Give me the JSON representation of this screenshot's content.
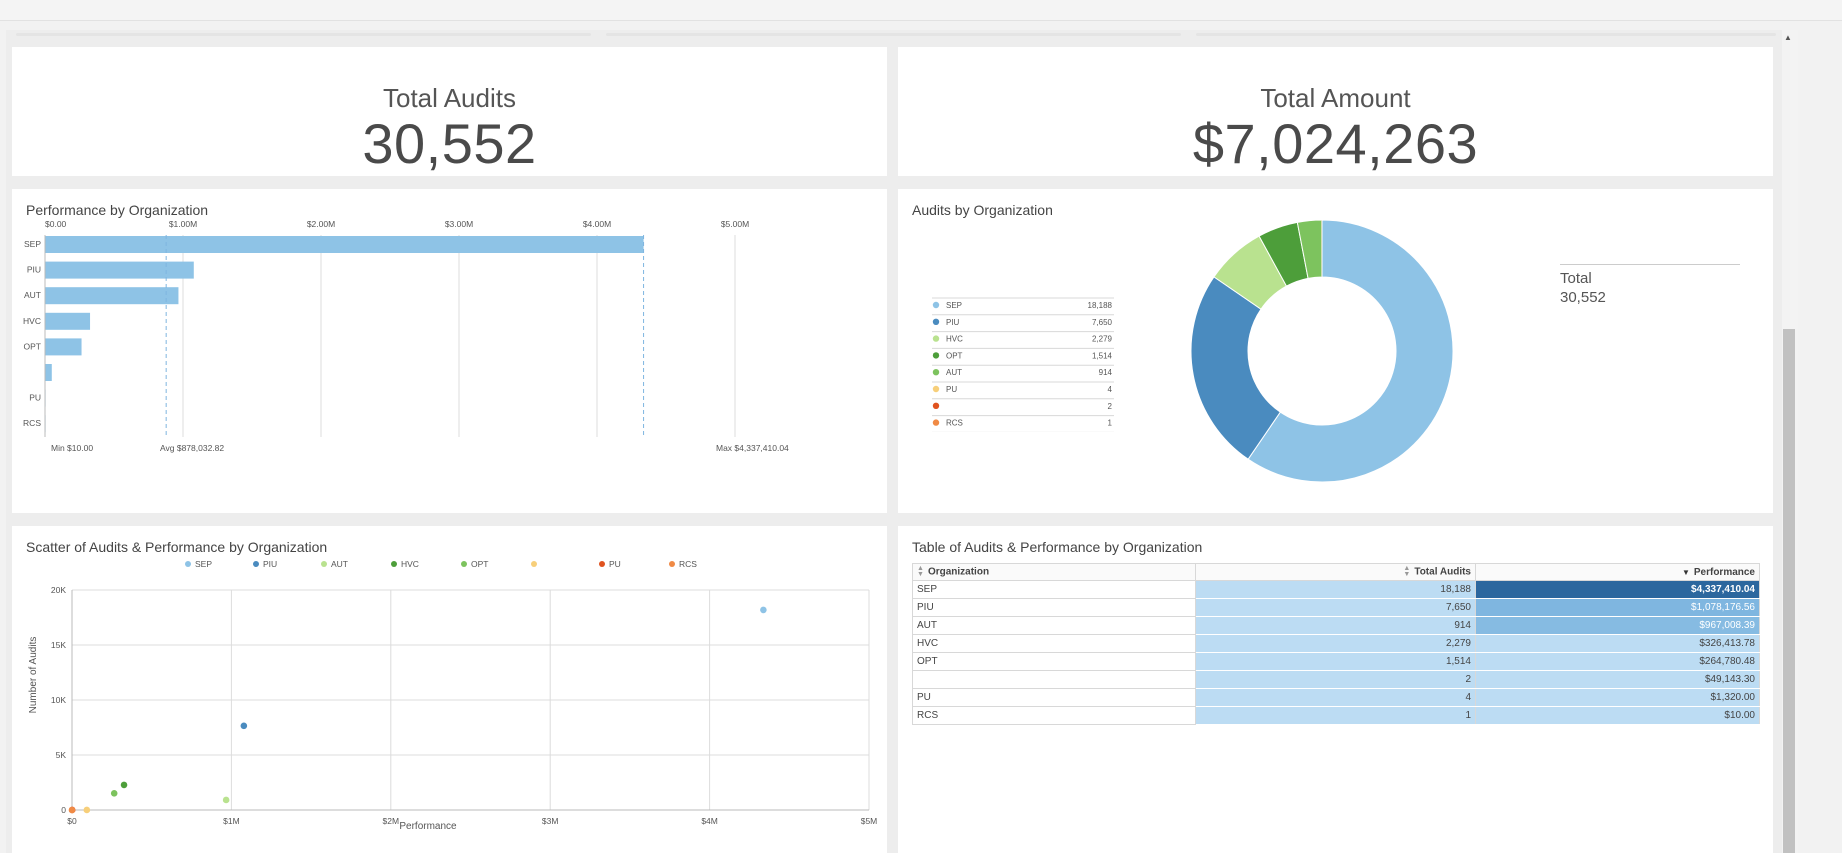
{
  "kpis": {
    "audits": {
      "title": "Total Audits",
      "value": "30,552"
    },
    "amount": {
      "title": "Total Amount",
      "value": "$7,024,263"
    }
  },
  "bar_panel": {
    "title": "Performance by Organization",
    "min_label": "Min $10.00",
    "avg_label": "Avg $878,032.82",
    "max_label": "Max $4,337,410.04"
  },
  "donut_panel": {
    "title": "Audits by Organization",
    "total_label": "Total",
    "total_value": "30,552",
    "legend": [
      {
        "label": "SEP",
        "value": "18,188",
        "color": "#8ec3e6"
      },
      {
        "label": "PIU",
        "value": "7,650",
        "color": "#4a8bbf"
      },
      {
        "label": "HVC",
        "value": "2,279",
        "color": "#b9e28f"
      },
      {
        "label": "OPT",
        "value": "1,514",
        "color": "#4d9e3a"
      },
      {
        "label": "AUT",
        "value": "914",
        "color": "#7dc35e"
      },
      {
        "label": "PU",
        "value": "4",
        "color": "#f7cf7a"
      },
      {
        "label": "",
        "value": "2",
        "color": "#e0531f"
      },
      {
        "label": "RCS",
        "value": "1",
        "color": "#f08a45"
      }
    ]
  },
  "scatter_panel": {
    "title": "Scatter of Audits & Performance by Organization",
    "legend": [
      {
        "label": "SEP",
        "color": "#8ec3e6"
      },
      {
        "label": "PIU",
        "color": "#4a8bbf"
      },
      {
        "label": "AUT",
        "color": "#b9e28f"
      },
      {
        "label": "HVC",
        "color": "#4d9e3a"
      },
      {
        "label": "OPT",
        "color": "#7dc35e"
      },
      {
        "label": "",
        "color": "#f7cf7a"
      },
      {
        "label": "PU",
        "color": "#e0531f"
      },
      {
        "label": "RCS",
        "color": "#f08a45"
      }
    ]
  },
  "table_panel": {
    "title": "Table of Audits & Performance by Organization",
    "columns": [
      "Organization",
      "Total Audits",
      "Performance"
    ],
    "rows": [
      {
        "org": "SEP",
        "audits": "18,188",
        "perf": "$4,337,410.04",
        "shade": "#2c679e"
      },
      {
        "org": "PIU",
        "audits": "7,650",
        "perf": "$1,078,176.56",
        "shade": "#7fb6e0"
      },
      {
        "org": "AUT",
        "audits": "914",
        "perf": "$967,008.39",
        "shade": "#86bbe2"
      },
      {
        "org": "HVC",
        "audits": "2,279",
        "perf": "$326,413.78",
        "shade": "#bcdcf3"
      },
      {
        "org": "OPT",
        "audits": "1,514",
        "perf": "$264,780.48",
        "shade": "#bcdcf3"
      },
      {
        "org": "",
        "audits": "2",
        "perf": "$49,143.30",
        "shade": "#bcdcf3"
      },
      {
        "org": "PU",
        "audits": "4",
        "perf": "$1,320.00",
        "shade": "#bcdcf3"
      },
      {
        "org": "RCS",
        "audits": "1",
        "perf": "$10.00",
        "shade": "#bcdcf3"
      }
    ]
  },
  "chart_data": [
    {
      "type": "bar",
      "orientation": "horizontal",
      "title": "Performance by Organization",
      "categories": [
        "SEP",
        "PIU",
        "AUT",
        "HVC",
        "OPT",
        "",
        "PU",
        "RCS"
      ],
      "values": [
        4337410.04,
        1078176.56,
        967008.39,
        326413.78,
        264780.48,
        49143.3,
        1320.0,
        10.0
      ],
      "xlim": [
        0,
        5000000
      ],
      "tick_labels": [
        "$0.00",
        "$1.00M",
        "$2.00M",
        "$3.00M",
        "$4.00M",
        "$5.00M"
      ],
      "ticks": [
        0,
        1000000,
        2000000,
        3000000,
        4000000,
        5000000
      ],
      "reference_lines": {
        "min": 10,
        "avg": 878032.82,
        "max": 4337410.04
      },
      "color": "#8ec3e6"
    },
    {
      "type": "pie",
      "donut": true,
      "title": "Audits by Organization",
      "categories": [
        "SEP",
        "PIU",
        "HVC",
        "OPT",
        "AUT",
        "PU",
        "",
        "RCS"
      ],
      "values": [
        18188,
        7650,
        2279,
        1514,
        914,
        4,
        2,
        1
      ],
      "colors": [
        "#8ec3e6",
        "#4a8bbf",
        "#b9e28f",
        "#4d9e3a",
        "#7dc35e",
        "#f7cf7a",
        "#e0531f",
        "#f08a45"
      ]
    },
    {
      "type": "scatter",
      "title": "Scatter of Audits & Performance by Organization",
      "xlabel": "Performance",
      "ylabel": "Number of Audits",
      "xlim": [
        0,
        5000000
      ],
      "ylim": [
        0,
        20000
      ],
      "x_ticks": [
        0,
        1000000,
        2000000,
        3000000,
        4000000,
        5000000
      ],
      "x_tick_labels": [
        "$0",
        "$1M",
        "$2M",
        "$3M",
        "$4M",
        "$5M"
      ],
      "y_ticks": [
        0,
        5000,
        10000,
        15000,
        20000
      ],
      "y_tick_labels": [
        "0",
        "5K",
        "10K",
        "15K",
        "20K"
      ],
      "points": [
        {
          "name": "SEP",
          "x": 4337410.04,
          "y": 18188,
          "color": "#8ec3e6"
        },
        {
          "name": "PIU",
          "x": 1078176.56,
          "y": 7650,
          "color": "#4a8bbf"
        },
        {
          "name": "AUT",
          "x": 967008.39,
          "y": 914,
          "color": "#b9e28f"
        },
        {
          "name": "HVC",
          "x": 326413.78,
          "y": 2279,
          "color": "#4d9e3a"
        },
        {
          "name": "OPT",
          "x": 264780.48,
          "y": 1514,
          "color": "#7dc35e"
        },
        {
          "name": "",
          "x": 49143.3,
          "y": 2,
          "color": "#f7cf7a"
        },
        {
          "name": "PU",
          "x": 1320.0,
          "y": 4,
          "color": "#e0531f"
        },
        {
          "name": "RCS",
          "x": 10.0,
          "y": 1,
          "color": "#f08a45"
        }
      ]
    }
  ]
}
